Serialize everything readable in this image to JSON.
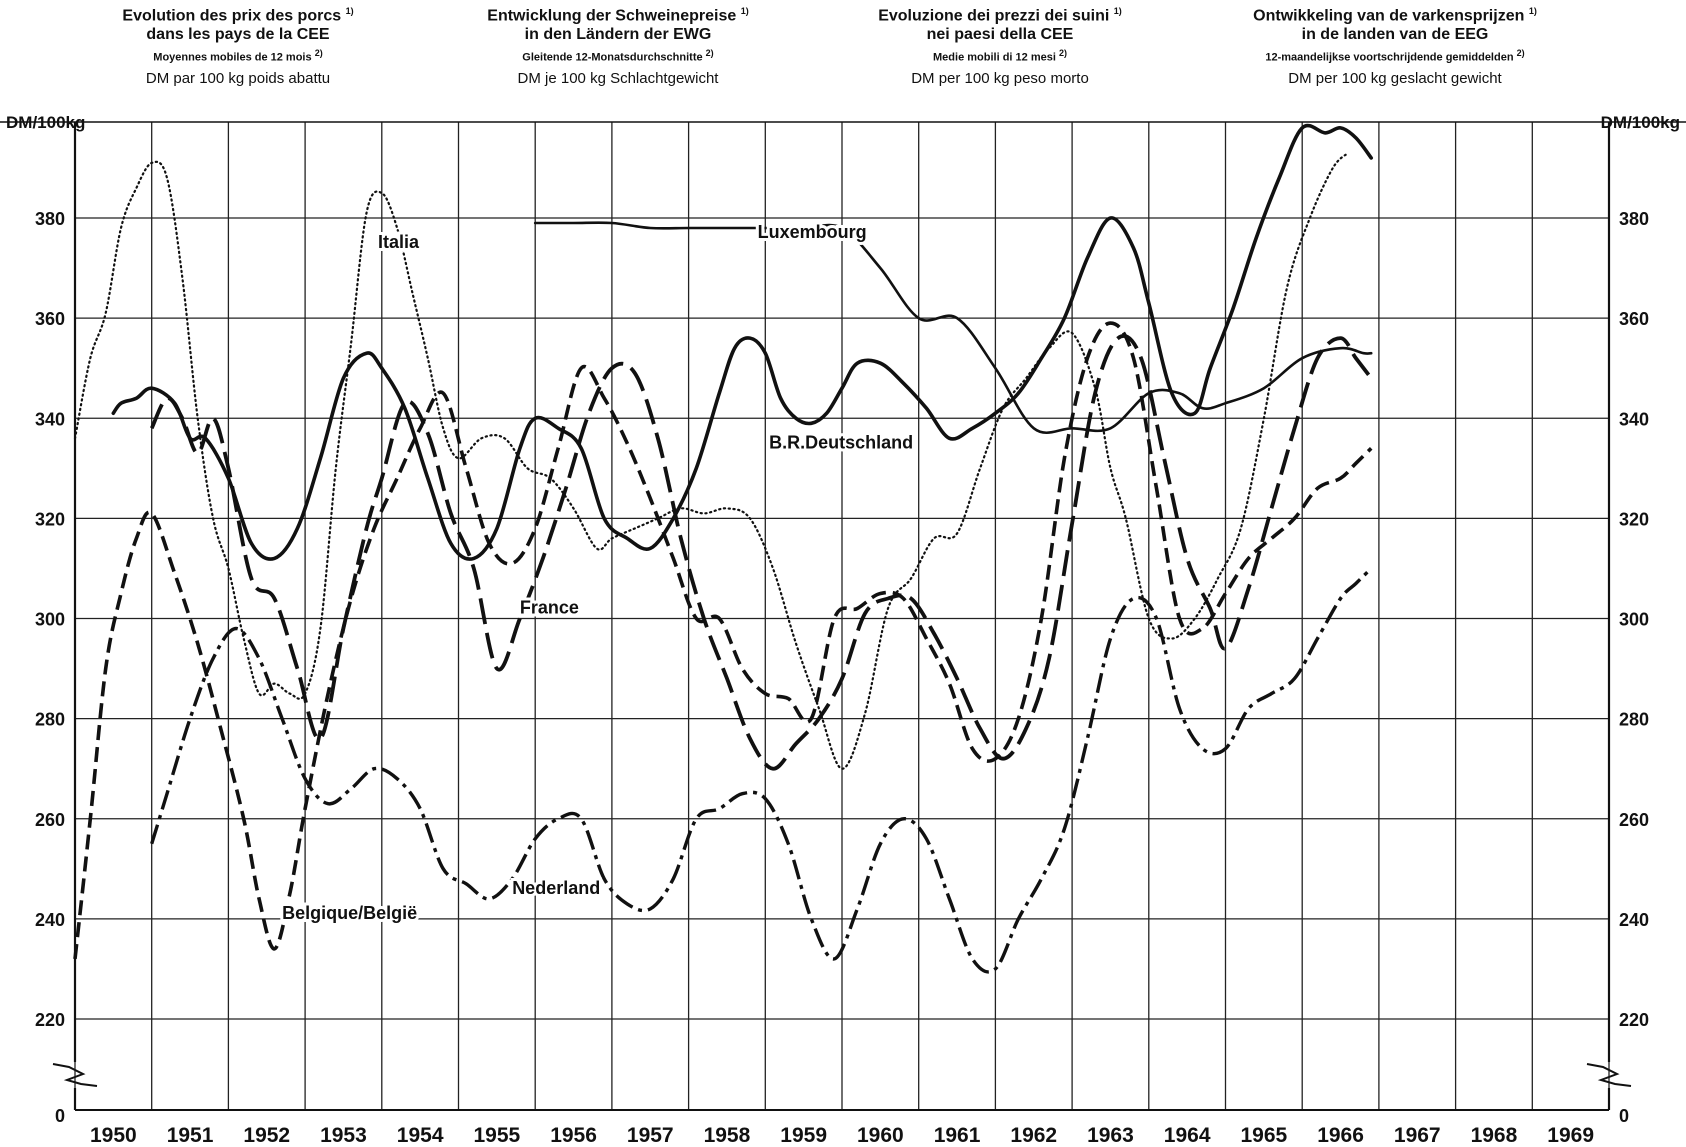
{
  "titles": [
    {
      "line1": "Evolution des prix des porcs",
      "fn1": "1)",
      "line2": "dans les pays de la CEE",
      "line3": "Moyennes mobiles de 12 mois",
      "fn3": "2)",
      "line4": "DM par 100 kg  poids abattu"
    },
    {
      "line1": "Entwicklung der Schweinepreise",
      "fn1": "1)",
      "line2": "in den Ländern der EWG",
      "line3": "Gleitende 12-Monatsdurchschnitte",
      "fn3": "2)",
      "line4": "DM  je 100 kg  Schlachtgewicht"
    },
    {
      "line1": "Evoluzione dei prezzi dei suini",
      "fn1": "1)",
      "line2": "nei paesi della CEE",
      "line3": "Medie mobili  di 12 mesi",
      "fn3": "2)",
      "line4": "DM per 100 kg  peso morto"
    },
    {
      "line1": "Ontwikkeling van de varkensprijzen",
      "fn1": "1)",
      "line2": "in de landen van de EEG",
      "line3": "12-maandelijkse voortschrijdende gemiddelden",
      "fn3": "2)",
      "line4": "DM per 100 kg  geslacht gewicht"
    }
  ],
  "chart_data": {
    "type": "line",
    "ylabel_left": "DM/100kg",
    "ylabel_right": "DM/100kg",
    "y_ticks": [
      220,
      240,
      260,
      280,
      300,
      320,
      340,
      360,
      380
    ],
    "y_zero_label": "0",
    "ylim": [
      210,
      400
    ],
    "broken_axis": true,
    "x_ticks": [
      "1950",
      "1951",
      "1952",
      "1953",
      "1954",
      "1955",
      "1956",
      "1957",
      "1958",
      "1959",
      "1960",
      "1961",
      "1962",
      "1963",
      "1964",
      "1965",
      "1966",
      "1967",
      "1968",
      "1969"
    ],
    "xlim": [
      1950,
      1970
    ],
    "grid": true,
    "series": [
      {
        "name": "B.R.Deutschland",
        "style": "solid-thick",
        "x": [
          1950.5,
          1950.6,
          1950.8,
          1951.0,
          1951.3,
          1951.5,
          1951.7,
          1952.0,
          1952.3,
          1952.6,
          1952.9,
          1953.2,
          1953.5,
          1953.8,
          1954.0,
          1954.3,
          1954.6,
          1954.9,
          1955.2,
          1955.5,
          1955.8,
          1956.0,
          1956.3,
          1956.6,
          1956.9,
          1957.2,
          1957.5,
          1957.8,
          1958.1,
          1958.4,
          1958.6,
          1958.8,
          1959.0,
          1959.2,
          1959.4,
          1959.6,
          1959.8,
          1960.0,
          1960.2,
          1960.5,
          1960.8,
          1961.1,
          1961.4,
          1961.7,
          1962.0,
          1962.3,
          1962.6,
          1962.9,
          1963.2,
          1963.5,
          1963.8,
          1964.0,
          1964.3,
          1964.6,
          1964.8,
          1965.1,
          1965.4,
          1965.7,
          1966.0,
          1966.3,
          1966.5,
          1966.7,
          1966.9
        ],
        "y": [
          341,
          343,
          344,
          346,
          343,
          336,
          336,
          328,
          315,
          312,
          318,
          332,
          348,
          353,
          350,
          342,
          328,
          315,
          312,
          318,
          334,
          340,
          338,
          334,
          320,
          316,
          314,
          320,
          330,
          345,
          354,
          356,
          353,
          344,
          340,
          339,
          341,
          346,
          351,
          351,
          347,
          342,
          336,
          338,
          341,
          345,
          352,
          360,
          372,
          380,
          374,
          363,
          345,
          341,
          350,
          362,
          376,
          388,
          398,
          397,
          398,
          396,
          392
        ]
      },
      {
        "name": "France",
        "style": "long-dash",
        "x": [
          1951.0,
          1951.2,
          1951.4,
          1951.6,
          1951.8,
          1952.0,
          1952.3,
          1952.6,
          1952.9,
          1953.2,
          1953.5,
          1953.8,
          1954.0,
          1954.3,
          1954.6,
          1954.9,
          1955.2,
          1955.5,
          1955.8,
          1956.1,
          1956.4,
          1956.7,
          1957.0,
          1957.3,
          1957.6,
          1957.9,
          1958.2,
          1958.5,
          1958.8,
          1959.1,
          1959.4,
          1959.7,
          1960.0,
          1960.3,
          1960.6,
          1960.9,
          1961.2,
          1961.5,
          1961.8,
          1962.1,
          1962.4,
          1962.7,
          1963.0,
          1963.3,
          1963.6,
          1963.9,
          1964.2,
          1964.5,
          1964.8,
          1965.0,
          1965.3,
          1965.6,
          1965.9,
          1966.2,
          1966.5,
          1966.7,
          1966.9
        ],
        "y": [
          338,
          344,
          340,
          333,
          340,
          330,
          308,
          304,
          290,
          276,
          298,
          318,
          328,
          343,
          337,
          321,
          310,
          290,
          300,
          312,
          326,
          341,
          350,
          349,
          336,
          316,
          300,
          288,
          276,
          270,
          275,
          280,
          288,
          301,
          304,
          304,
          297,
          288,
          278,
          272,
          278,
          292,
          319,
          345,
          356,
          352,
          332,
          312,
          302,
          294,
          306,
          322,
          338,
          352,
          356,
          352,
          348
        ]
      },
      {
        "name": "Italia",
        "style": "dotted",
        "x": [
          1950.0,
          1950.2,
          1950.4,
          1950.6,
          1950.8,
          1951.0,
          1951.2,
          1951.4,
          1951.6,
          1951.8,
          1952.0,
          1952.2,
          1952.4,
          1952.6,
          1952.8,
          1953.0,
          1953.2,
          1953.4,
          1953.6,
          1953.8,
          1954.0,
          1954.2,
          1954.4,
          1954.6,
          1954.8,
          1955.0,
          1955.3,
          1955.6,
          1955.9,
          1956.2,
          1956.5,
          1956.8,
          1957.0,
          1957.3,
          1957.6,
          1957.9,
          1958.2,
          1958.5,
          1958.8,
          1959.1,
          1959.4,
          1959.7,
          1960.0,
          1960.3,
          1960.6,
          1960.9,
          1961.2,
          1961.5,
          1961.8,
          1962.1,
          1962.4,
          1962.7,
          1963.0,
          1963.3,
          1963.5,
          1963.7,
          1964.0,
          1964.3,
          1964.6,
          1964.9,
          1965.2,
          1965.5,
          1965.8,
          1966.1,
          1966.4,
          1966.6
        ],
        "y": [
          336,
          352,
          361,
          378,
          386,
          391,
          388,
          368,
          340,
          320,
          310,
          296,
          285,
          287,
          285,
          285,
          298,
          330,
          355,
          381,
          385,
          378,
          365,
          352,
          338,
          332,
          336,
          336,
          330,
          328,
          322,
          314,
          316,
          318,
          320,
          322,
          321,
          322,
          320,
          310,
          295,
          282,
          270,
          281,
          302,
          308,
          316,
          317,
          330,
          342,
          348,
          354,
          357,
          346,
          330,
          320,
          300,
          296,
          300,
          308,
          318,
          340,
          366,
          380,
          390,
          393
        ]
      },
      {
        "name": "Nederland",
        "style": "dash-dot",
        "x": [
          1951.0,
          1951.2,
          1951.5,
          1951.8,
          1952.1,
          1952.4,
          1952.7,
          1953.0,
          1953.3,
          1953.6,
          1953.9,
          1954.2,
          1954.5,
          1954.8,
          1955.1,
          1955.4,
          1955.7,
          1956.0,
          1956.3,
          1956.6,
          1956.9,
          1957.2,
          1957.5,
          1957.8,
          1958.1,
          1958.4,
          1958.7,
          1959.0,
          1959.3,
          1959.6,
          1959.9,
          1960.2,
          1960.5,
          1960.8,
          1961.1,
          1961.4,
          1961.7,
          1962.0,
          1962.3,
          1962.6,
          1962.9,
          1963.2,
          1963.5,
          1963.8,
          1964.1,
          1964.4,
          1964.7,
          1965.0,
          1965.3,
          1965.6,
          1965.9,
          1966.2,
          1966.5,
          1966.7,
          1966.9
        ],
        "y": [
          255,
          265,
          280,
          292,
          298,
          292,
          280,
          268,
          263,
          266,
          270,
          268,
          262,
          250,
          247,
          244,
          248,
          256,
          260,
          260,
          248,
          243,
          242,
          248,
          260,
          262,
          265,
          264,
          255,
          240,
          232,
          242,
          255,
          260,
          256,
          244,
          232,
          230,
          240,
          248,
          258,
          276,
          296,
          304,
          300,
          282,
          274,
          274,
          282,
          285,
          288,
          296,
          304,
          307,
          310
        ]
      },
      {
        "name": "Belgique/België",
        "style": "dashed",
        "x": [
          1950.0,
          1950.2,
          1950.4,
          1950.6,
          1950.8,
          1951.0,
          1951.3,
          1951.6,
          1951.9,
          1952.2,
          1952.4,
          1952.6,
          1952.8,
          1953.0,
          1953.3,
          1953.6,
          1953.9,
          1954.2,
          1954.5,
          1954.8,
          1955.1,
          1955.4,
          1955.7,
          1956.0,
          1956.3,
          1956.6,
          1956.9,
          1957.2,
          1957.5,
          1957.8,
          1958.1,
          1958.4,
          1958.7,
          1959.0,
          1959.3,
          1959.6,
          1959.9,
          1960.2,
          1960.5,
          1960.8,
          1961.1,
          1961.4,
          1961.7,
          1962.0,
          1962.3,
          1962.6,
          1962.9,
          1963.2,
          1963.5,
          1963.8,
          1964.1,
          1964.4,
          1964.7,
          1965.0,
          1965.3,
          1965.6,
          1965.9,
          1966.2,
          1966.5,
          1966.7,
          1966.9
        ],
        "y": [
          232,
          260,
          290,
          305,
          316,
          321,
          309,
          295,
          278,
          260,
          244,
          234,
          245,
          262,
          285,
          304,
          318,
          328,
          338,
          345,
          330,
          315,
          311,
          318,
          334,
          350,
          344,
          335,
          324,
          312,
          300,
          300,
          290,
          285,
          284,
          280,
          300,
          302,
          305,
          304,
          296,
          287,
          274,
          272,
          280,
          300,
          332,
          352,
          359,
          352,
          326,
          300,
          298,
          305,
          312,
          316,
          320,
          326,
          328,
          331,
          334
        ]
      },
      {
        "name": "Luxembourg",
        "style": "solid-thin",
        "x": [
          1956.0,
          1956.5,
          1957.0,
          1957.5,
          1958.0,
          1958.5,
          1959.0,
          1959.5,
          1960.0,
          1960.5,
          1961.0,
          1961.5,
          1962.0,
          1962.5,
          1963.0,
          1963.5,
          1964.0,
          1964.4,
          1964.7,
          1965.0,
          1965.5,
          1966.0,
          1966.5,
          1966.8,
          1966.9
        ],
        "y": [
          379,
          379,
          379,
          378,
          378,
          378,
          378,
          378,
          378,
          370,
          360,
          360,
          350,
          338,
          338,
          338,
          345,
          345,
          342,
          343,
          346,
          352,
          354,
          353,
          353
        ]
      }
    ],
    "annotations": [
      {
        "text": "Italia",
        "x": 1953.95,
        "y": 374
      },
      {
        "text": "Luxembourg",
        "x": 1958.9,
        "y": 376
      },
      {
        "text": "B.R.Deutschland",
        "x": 1959.05,
        "y": 334
      },
      {
        "text": "France",
        "x": 1955.8,
        "y": 301
      },
      {
        "text": "Nederland",
        "x": 1955.7,
        "y": 245
      },
      {
        "text": "Belgique/België",
        "x": 1952.7,
        "y": 240
      }
    ]
  }
}
